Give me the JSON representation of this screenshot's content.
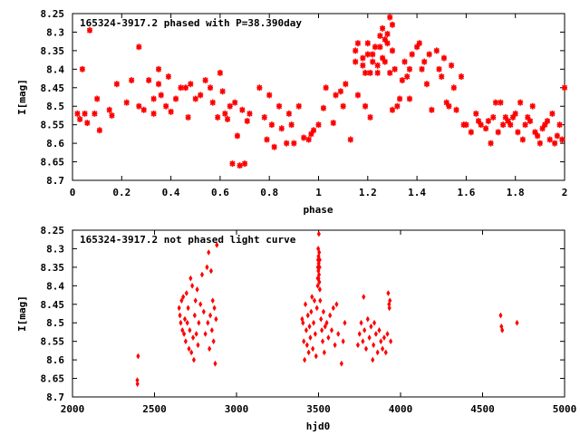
{
  "chart_data": [
    {
      "type": "scatter",
      "title": "165324-3917.2 phased with P=38.390day",
      "xlabel": "phase",
      "ylabel": "I[mag]",
      "xlim": [
        0,
        2
      ],
      "ylim": [
        8.25,
        8.7
      ],
      "y_inverted": true,
      "grid": false,
      "marker": "asterisk",
      "color": "#ff0000",
      "xticks": [
        "0",
        "0.2",
        "0.4",
        "0.6",
        "0.8",
        "1",
        "1.2",
        "1.4",
        "1.6",
        "1.8",
        "2"
      ],
      "xtick_values": [
        0,
        0.2,
        0.4,
        0.6,
        0.8,
        1,
        1.2,
        1.4,
        1.6,
        1.8,
        2
      ],
      "yticks": [
        "8.25",
        "8.3",
        "8.35",
        "8.4",
        "8.45",
        "8.5",
        "8.55",
        "8.6",
        "8.65",
        "8.7"
      ],
      "ytick_values": [
        8.25,
        8.3,
        8.35,
        8.4,
        8.45,
        8.5,
        8.55,
        8.6,
        8.65,
        8.7
      ],
      "points": [
        [
          0.02,
          8.52
        ],
        [
          0.03,
          8.535
        ],
        [
          0.04,
          8.4
        ],
        [
          0.05,
          8.52
        ],
        [
          0.06,
          8.545
        ],
        [
          0.07,
          8.295
        ],
        [
          0.09,
          8.52
        ],
        [
          0.1,
          8.48
        ],
        [
          0.11,
          8.565
        ],
        [
          0.15,
          8.51
        ],
        [
          0.16,
          8.525
        ],
        [
          0.18,
          8.44
        ],
        [
          0.22,
          8.49
        ],
        [
          0.24,
          8.43
        ],
        [
          0.27,
          8.34
        ],
        [
          0.27,
          8.5
        ],
        [
          0.29,
          8.51
        ],
        [
          0.31,
          8.43
        ],
        [
          0.33,
          8.48
        ],
        [
          0.33,
          8.52
        ],
        [
          0.35,
          8.4
        ],
        [
          0.35,
          8.44
        ],
        [
          0.36,
          8.47
        ],
        [
          0.38,
          8.5
        ],
        [
          0.39,
          8.42
        ],
        [
          0.4,
          8.515
        ],
        [
          0.42,
          8.48
        ],
        [
          0.44,
          8.45
        ],
        [
          0.46,
          8.45
        ],
        [
          0.47,
          8.53
        ],
        [
          0.48,
          8.44
        ],
        [
          0.5,
          8.48
        ],
        [
          0.52,
          8.47
        ],
        [
          0.54,
          8.43
        ],
        [
          0.56,
          8.45
        ],
        [
          0.57,
          8.49
        ],
        [
          0.59,
          8.53
        ],
        [
          0.6,
          8.41
        ],
        [
          0.61,
          8.46
        ],
        [
          0.62,
          8.52
        ],
        [
          0.63,
          8.535
        ],
        [
          0.64,
          8.5
        ],
        [
          0.65,
          8.655
        ],
        [
          0.66,
          8.49
        ],
        [
          0.67,
          8.58
        ],
        [
          0.68,
          8.66
        ],
        [
          0.69,
          8.51
        ],
        [
          0.7,
          8.655
        ],
        [
          0.71,
          8.54
        ],
        [
          0.72,
          8.52
        ],
        [
          0.76,
          8.45
        ],
        [
          0.78,
          8.53
        ],
        [
          0.79,
          8.59
        ],
        [
          0.8,
          8.47
        ],
        [
          0.81,
          8.55
        ],
        [
          0.82,
          8.61
        ],
        [
          0.84,
          8.5
        ],
        [
          0.85,
          8.56
        ],
        [
          0.87,
          8.6
        ],
        [
          0.88,
          8.52
        ],
        [
          0.89,
          8.55
        ],
        [
          0.9,
          8.6
        ],
        [
          0.92,
          8.5
        ],
        [
          0.94,
          8.585
        ],
        [
          0.96,
          8.59
        ],
        [
          0.97,
          8.575
        ],
        [
          0.98,
          8.565
        ],
        [
          1.0,
          8.55
        ],
        [
          1.02,
          8.505
        ],
        [
          1.03,
          8.45
        ],
        [
          1.06,
          8.545
        ],
        [
          1.07,
          8.47
        ],
        [
          1.09,
          8.46
        ],
        [
          1.1,
          8.5
        ],
        [
          1.11,
          8.44
        ],
        [
          1.13,
          8.59
        ],
        [
          1.15,
          8.35
        ],
        [
          1.15,
          8.38
        ],
        [
          1.16,
          8.33
        ],
        [
          1.16,
          8.47
        ],
        [
          1.18,
          8.39
        ],
        [
          1.18,
          8.37
        ],
        [
          1.19,
          8.41
        ],
        [
          1.19,
          8.5
        ],
        [
          1.2,
          8.36
        ],
        [
          1.2,
          8.33
        ],
        [
          1.21,
          8.41
        ],
        [
          1.21,
          8.53
        ],
        [
          1.22,
          8.38
        ],
        [
          1.22,
          8.36
        ],
        [
          1.23,
          8.34
        ],
        [
          1.24,
          8.39
        ],
        [
          1.24,
          8.41
        ],
        [
          1.25,
          8.31
        ],
        [
          1.25,
          8.34
        ],
        [
          1.26,
          8.37
        ],
        [
          1.26,
          8.29
        ],
        [
          1.27,
          8.32
        ],
        [
          1.27,
          8.38
        ],
        [
          1.28,
          8.305
        ],
        [
          1.28,
          8.33
        ],
        [
          1.29,
          8.26
        ],
        [
          1.29,
          8.41
        ],
        [
          1.3,
          8.51
        ],
        [
          1.3,
          8.28
        ],
        [
          1.3,
          8.35
        ],
        [
          1.31,
          8.4
        ],
        [
          1.32,
          8.5
        ],
        [
          1.33,
          8.48
        ],
        [
          1.34,
          8.43
        ],
        [
          1.35,
          8.38
        ],
        [
          1.36,
          8.42
        ],
        [
          1.37,
          8.4
        ],
        [
          1.37,
          8.48
        ],
        [
          1.38,
          8.36
        ],
        [
          1.4,
          8.34
        ],
        [
          1.41,
          8.33
        ],
        [
          1.42,
          8.4
        ],
        [
          1.43,
          8.38
        ],
        [
          1.44,
          8.44
        ],
        [
          1.45,
          8.36
        ],
        [
          1.46,
          8.51
        ],
        [
          1.48,
          8.35
        ],
        [
          1.49,
          8.4
        ],
        [
          1.5,
          8.42
        ],
        [
          1.51,
          8.37
        ],
        [
          1.52,
          8.49
        ],
        [
          1.53,
          8.5
        ],
        [
          1.54,
          8.39
        ],
        [
          1.55,
          8.45
        ],
        [
          1.56,
          8.51
        ],
        [
          1.58,
          8.42
        ],
        [
          1.59,
          8.55
        ],
        [
          1.6,
          8.55
        ],
        [
          1.62,
          8.57
        ],
        [
          1.64,
          8.52
        ],
        [
          1.65,
          8.54
        ],
        [
          1.66,
          8.55
        ],
        [
          1.68,
          8.56
        ],
        [
          1.69,
          8.54
        ],
        [
          1.7,
          8.6
        ],
        [
          1.71,
          8.53
        ],
        [
          1.72,
          8.49
        ],
        [
          1.73,
          8.57
        ],
        [
          1.74,
          8.49
        ],
        [
          1.75,
          8.55
        ],
        [
          1.76,
          8.53
        ],
        [
          1.77,
          8.54
        ],
        [
          1.78,
          8.55
        ],
        [
          1.79,
          8.53
        ],
        [
          1.8,
          8.52
        ],
        [
          1.81,
          8.57
        ],
        [
          1.82,
          8.49
        ],
        [
          1.83,
          8.59
        ],
        [
          1.84,
          8.55
        ],
        [
          1.85,
          8.53
        ],
        [
          1.86,
          8.54
        ],
        [
          1.87,
          8.5
        ],
        [
          1.88,
          8.57
        ],
        [
          1.89,
          8.58
        ],
        [
          1.9,
          8.6
        ],
        [
          1.91,
          8.56
        ],
        [
          1.92,
          8.55
        ],
        [
          1.93,
          8.54
        ],
        [
          1.94,
          8.59
        ],
        [
          1.95,
          8.52
        ],
        [
          1.96,
          8.6
        ],
        [
          1.97,
          8.58
        ],
        [
          1.98,
          8.55
        ],
        [
          1.99,
          8.59
        ],
        [
          2.0,
          8.45
        ]
      ]
    },
    {
      "type": "scatter",
      "title": "165324-3917.2 not phased light curve",
      "xlabel": "hjd0",
      "ylabel": "I[mag]",
      "xlim": [
        2000,
        5000
      ],
      "ylim": [
        8.25,
        8.7
      ],
      "y_inverted": true,
      "grid": false,
      "marker": "diamond",
      "color": "#ff0000",
      "xticks": [
        "2000",
        "2500",
        "3000",
        "3500",
        "4000",
        "4500",
        "5000"
      ],
      "xtick_values": [
        2000,
        2500,
        3000,
        3500,
        4000,
        4500,
        5000
      ],
      "yticks": [
        "8.25",
        "8.3",
        "8.35",
        "8.4",
        "8.45",
        "8.5",
        "8.55",
        "8.6",
        "8.65",
        "8.7"
      ],
      "ytick_values": [
        8.25,
        8.3,
        8.35,
        8.4,
        8.45,
        8.5,
        8.55,
        8.6,
        8.65,
        8.7
      ],
      "points": [
        [
          2395,
          8.655
        ],
        [
          2396,
          8.665
        ],
        [
          2400,
          8.59
        ],
        [
          2650,
          8.46
        ],
        [
          2655,
          8.48
        ],
        [
          2660,
          8.5
        ],
        [
          2665,
          8.44
        ],
        [
          2670,
          8.52
        ],
        [
          2675,
          8.43
        ],
        [
          2680,
          8.53
        ],
        [
          2685,
          8.49
        ],
        [
          2690,
          8.55
        ],
        [
          2695,
          8.42
        ],
        [
          2700,
          8.5
        ],
        [
          2705,
          8.46
        ],
        [
          2710,
          8.57
        ],
        [
          2715,
          8.52
        ],
        [
          2720,
          8.38
        ],
        [
          2725,
          8.58
        ],
        [
          2730,
          8.4
        ],
        [
          2735,
          8.54
        ],
        [
          2740,
          8.6
        ],
        [
          2745,
          8.48
        ],
        [
          2750,
          8.44
        ],
        [
          2755,
          8.53
        ],
        [
          2760,
          8.41
        ],
        [
          2765,
          8.56
        ],
        [
          2770,
          8.5
        ],
        [
          2780,
          8.45
        ],
        [
          2790,
          8.37
        ],
        [
          2800,
          8.47
        ],
        [
          2810,
          8.53
        ],
        [
          2820,
          8.35
        ],
        [
          2825,
          8.5
        ],
        [
          2830,
          8.31
        ],
        [
          2835,
          8.57
        ],
        [
          2840,
          8.48
        ],
        [
          2845,
          8.36
        ],
        [
          2850,
          8.52
        ],
        [
          2855,
          8.44
        ],
        [
          2860,
          8.55
        ],
        [
          2865,
          8.46
        ],
        [
          2870,
          8.61
        ],
        [
          2875,
          8.49
        ],
        [
          2880,
          8.29
        ],
        [
          3400,
          8.49
        ],
        [
          3405,
          8.5
        ],
        [
          3410,
          8.55
        ],
        [
          3415,
          8.6
        ],
        [
          3420,
          8.45
        ],
        [
          3425,
          8.52
        ],
        [
          3430,
          8.56
        ],
        [
          3435,
          8.48
        ],
        [
          3440,
          8.58
        ],
        [
          3445,
          8.51
        ],
        [
          3450,
          8.54
        ],
        [
          3455,
          8.47
        ],
        [
          3460,
          8.43
        ],
        [
          3465,
          8.57
        ],
        [
          3470,
          8.5
        ],
        [
          3475,
          8.44
        ],
        [
          3480,
          8.53
        ],
        [
          3485,
          8.59
        ],
        [
          3490,
          8.46
        ],
        [
          3495,
          8.38
        ],
        [
          3495,
          8.4
        ],
        [
          3496,
          8.35
        ],
        [
          3497,
          8.33
        ],
        [
          3498,
          8.3
        ],
        [
          3499,
          8.36
        ],
        [
          3500,
          8.32
        ],
        [
          3500,
          8.38
        ],
        [
          3501,
          8.34
        ],
        [
          3502,
          8.26
        ],
        [
          3503,
          8.37
        ],
        [
          3504,
          8.31
        ],
        [
          3505,
          8.39
        ],
        [
          3506,
          8.35
        ],
        [
          3507,
          8.33
        ],
        [
          3508,
          8.41
        ],
        [
          3510,
          8.44
        ],
        [
          3515,
          8.49
        ],
        [
          3520,
          8.52
        ],
        [
          3525,
          8.55
        ],
        [
          3530,
          8.47
        ],
        [
          3535,
          8.58
        ],
        [
          3540,
          8.51
        ],
        [
          3550,
          8.5
        ],
        [
          3560,
          8.54
        ],
        [
          3570,
          8.48
        ],
        [
          3580,
          8.52
        ],
        [
          3590,
          8.46
        ],
        [
          3600,
          8.56
        ],
        [
          3610,
          8.45
        ],
        [
          3620,
          8.53
        ],
        [
          3640,
          8.61
        ],
        [
          3650,
          8.55
        ],
        [
          3660,
          8.5
        ],
        [
          3740,
          8.56
        ],
        [
          3750,
          8.53
        ],
        [
          3760,
          8.5
        ],
        [
          3770,
          8.55
        ],
        [
          3775,
          8.43
        ],
        [
          3780,
          8.52
        ],
        [
          3790,
          8.57
        ],
        [
          3800,
          8.49
        ],
        [
          3810,
          8.54
        ],
        [
          3820,
          8.51
        ],
        [
          3830,
          8.6
        ],
        [
          3835,
          8.56
        ],
        [
          3840,
          8.5
        ],
        [
          3850,
          8.53
        ],
        [
          3860,
          8.58
        ],
        [
          3870,
          8.52
        ],
        [
          3880,
          8.55
        ],
        [
          3890,
          8.57
        ],
        [
          3900,
          8.54
        ],
        [
          3910,
          8.58
        ],
        [
          3920,
          8.53
        ],
        [
          3925,
          8.42
        ],
        [
          3930,
          8.45
        ],
        [
          3932,
          8.46
        ],
        [
          3935,
          8.44
        ],
        [
          3940,
          8.55
        ],
        [
          4610,
          8.48
        ],
        [
          4615,
          8.51
        ],
        [
          4620,
          8.52
        ],
        [
          4710,
          8.5
        ]
      ]
    }
  ]
}
